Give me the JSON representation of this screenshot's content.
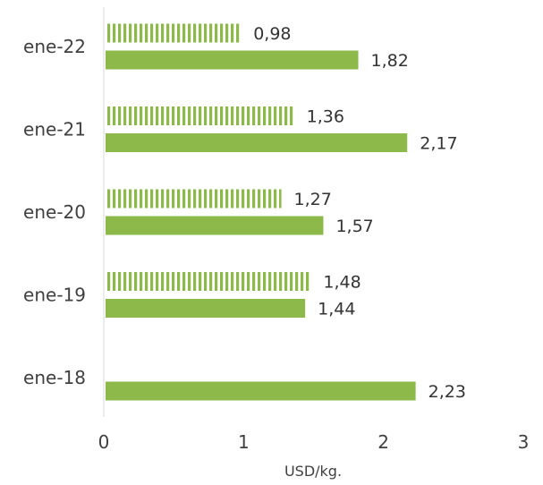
{
  "chart_data": {
    "type": "bar",
    "orientation": "horizontal",
    "categories": [
      "ene-22",
      "ene-21",
      "ene-20",
      "ene-19",
      "ene-18"
    ],
    "series": [
      {
        "pattern": "striped",
        "color": "#8DB94B",
        "values": [
          0.98,
          1.36,
          1.27,
          1.48,
          null
        ],
        "labels": [
          "0,98",
          "1,36",
          "1,27",
          "1,48",
          ""
        ]
      },
      {
        "pattern": "solid",
        "color": "#8DB94B",
        "values": [
          1.82,
          2.17,
          1.57,
          1.44,
          2.23
        ],
        "labels": [
          "1,82",
          "2,17",
          "1,57",
          "1,44",
          "2,23"
        ]
      }
    ],
    "xlim": [
      0,
      3
    ],
    "xticks": [
      "0",
      "1",
      "2",
      "3"
    ],
    "xlabel": "USD/kg.",
    "grid": false,
    "legend": "none"
  }
}
